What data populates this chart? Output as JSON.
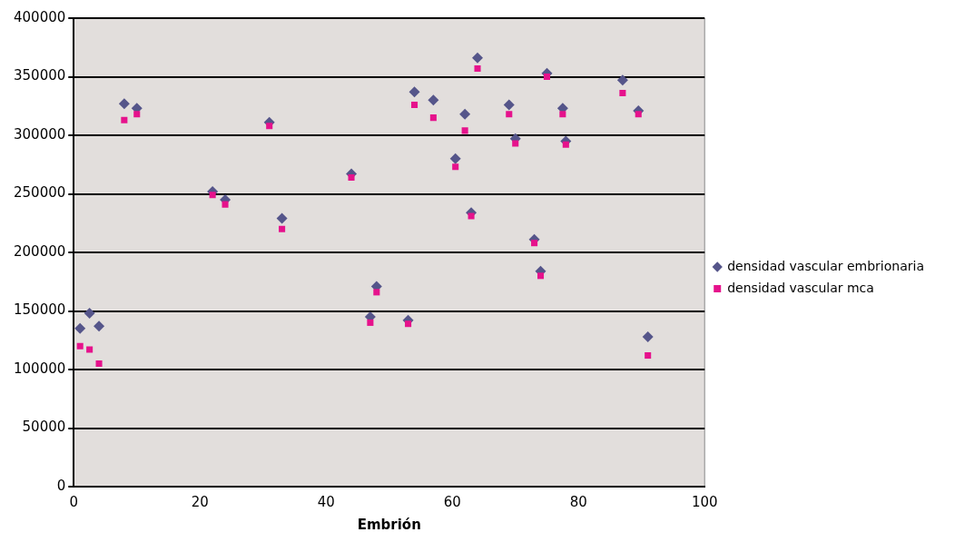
{
  "chart_data": {
    "type": "scatter",
    "xlabel": "Embrión",
    "xlim": [
      0,
      100
    ],
    "xticks": [
      0,
      20,
      40,
      60,
      80,
      100
    ],
    "ylim": [
      0,
      400000
    ],
    "yticks": [
      0,
      50000,
      100000,
      150000,
      200000,
      250000,
      300000,
      350000,
      400000
    ],
    "grid": "y",
    "legend": "right",
    "x": [
      1,
      2.5,
      4,
      8,
      10,
      22,
      24,
      31,
      33,
      44,
      47,
      48,
      53,
      54,
      57,
      60.5,
      62,
      63,
      64,
      69,
      70,
      73,
      74,
      75,
      77.5,
      78,
      87,
      89.5,
      91
    ],
    "series": [
      {
        "name": "densidad vascular embrionaria",
        "color": "#55558a",
        "marker": "diamond",
        "values": [
          135000,
          148000,
          137000,
          327000,
          323000,
          252000,
          245000,
          311000,
          229000,
          267000,
          145000,
          171000,
          142000,
          337000,
          330000,
          280000,
          318000,
          234000,
          366000,
          326000,
          297000,
          211000,
          184000,
          353000,
          323000,
          295000,
          347000,
          321000,
          128000
        ]
      },
      {
        "name": "densidad vascular mca",
        "color": "#e6128c",
        "marker": "square",
        "values": [
          120000,
          117000,
          105000,
          313000,
          318000,
          249000,
          241000,
          308000,
          220000,
          264000,
          140000,
          166000,
          139000,
          326000,
          315000,
          273000,
          304000,
          231000,
          357000,
          318000,
          293000,
          208000,
          180000,
          350000,
          318000,
          292000,
          336000,
          318000,
          112000
        ]
      }
    ]
  }
}
